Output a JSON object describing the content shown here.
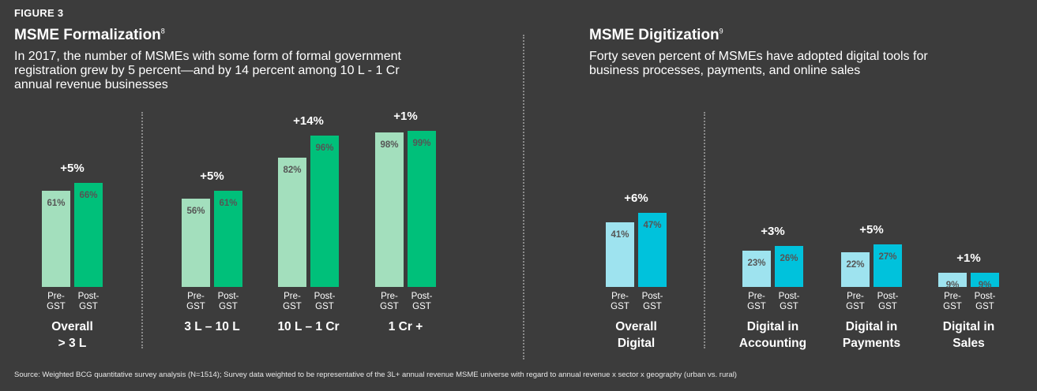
{
  "figure_label": "FIGURE 3",
  "left_panel": {
    "title": "MSME Formalization",
    "footnote": "8",
    "subtitle_lines": [
      "In 2017, the number of MSMEs with some form of formal government",
      "registration grew by 5 percent—and by 14 percent among 10 L - 1 Cr",
      "annual revenue businesses"
    ]
  },
  "right_panel": {
    "title": "MSME Digitization",
    "footnote": "9",
    "subtitle_lines": [
      "Forty seven percent of MSMEs have adopted digital tools for",
      "business processes, payments, and online sales"
    ]
  },
  "source": "Source: Weighted BCG quantitative survey analysis (N=1514); Survey data weighted to be representative of the 3L+ annual revenue MSME universe with regard to annual revenue x sector x geography (urban vs. rural)",
  "colors": {
    "formal_pre": "#a3dfbd",
    "formal_post": "#00c07a",
    "digital_pre": "#9ee3ef",
    "digital_post": "#00c2dc",
    "bar_label_text": "#555555"
  },
  "chart_data": [
    {
      "type": "bar",
      "title": "MSME Formalization",
      "series": [
        {
          "name": "Pre-GST",
          "values": [
            61,
            56,
            82,
            98
          ]
        },
        {
          "name": "Post-GST",
          "values": [
            66,
            61,
            96,
            99
          ]
        }
      ],
      "bar_sublabels": [
        [
          "Pre-",
          "GST"
        ],
        [
          "Post-",
          "GST"
        ]
      ],
      "categories": [
        [
          "Overall",
          "> 3 L"
        ],
        [
          "3 L – 10 L"
        ],
        [
          "10 L – 1 Cr"
        ],
        [
          "1 Cr +"
        ]
      ],
      "changes": [
        "+5%",
        "+5%",
        "+14%",
        "+1%"
      ],
      "value_suffix": "%",
      "ylim": [
        0,
        100
      ]
    },
    {
      "type": "bar",
      "title": "MSME Digitization",
      "series": [
        {
          "name": "Pre-GST",
          "values": [
            41,
            23,
            22,
            9
          ]
        },
        {
          "name": "Post-GST",
          "values": [
            47,
            26,
            27,
            9
          ]
        }
      ],
      "bar_sublabels": [
        [
          "Pre-",
          "GST"
        ],
        [
          "Post-",
          "GST"
        ]
      ],
      "categories": [
        [
          "Overall",
          "Digital"
        ],
        [
          "Digital in",
          "Accounting"
        ],
        [
          "Digital in",
          "Payments"
        ],
        [
          "Digital in",
          "Sales"
        ]
      ],
      "changes": [
        "+6%",
        "+3%",
        "+5%",
        "+1%"
      ],
      "value_suffix": "%",
      "ylim": [
        0,
        100
      ]
    }
  ]
}
